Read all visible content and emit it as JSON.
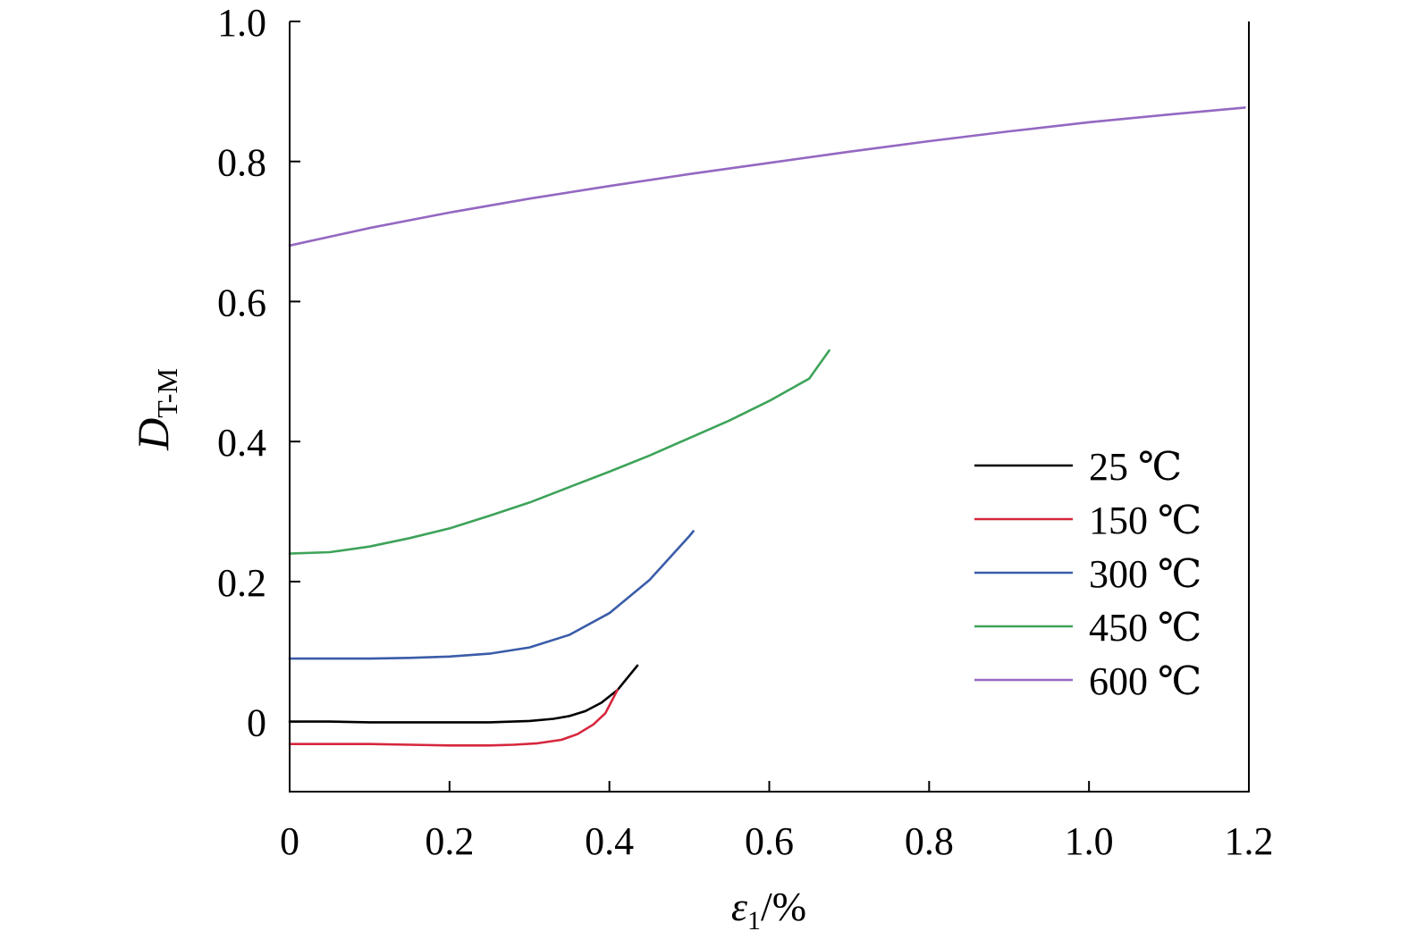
{
  "chart_data": {
    "type": "line",
    "title": "",
    "xlabel": {
      "main": "ε",
      "sub": "1",
      "suffix": "/%"
    },
    "ylabel": {
      "main": "D",
      "sub": "T-M"
    },
    "xlim": [
      0,
      1.2
    ],
    "ylim": [
      -0.1,
      1.0
    ],
    "x_ticks": [
      {
        "value": 0,
        "label": "0"
      },
      {
        "value": 0.2,
        "label": "0.2"
      },
      {
        "value": 0.4,
        "label": "0.4"
      },
      {
        "value": 0.6,
        "label": "0.6"
      },
      {
        "value": 0.8,
        "label": "0.8"
      },
      {
        "value": 1.0,
        "label": "1.0"
      },
      {
        "value": 1.2,
        "label": "1.2"
      }
    ],
    "y_ticks": [
      {
        "value": 0,
        "label": "0"
      },
      {
        "value": 0.2,
        "label": "0.2"
      },
      {
        "value": 0.4,
        "label": "0.4"
      },
      {
        "value": 0.6,
        "label": "0.6"
      },
      {
        "value": 0.8,
        "label": "0.8"
      },
      {
        "value": 1.0,
        "label": "1.0"
      }
    ],
    "grid": false,
    "legend_position": "right",
    "series": [
      {
        "name": "25 ℃",
        "color": "#000000",
        "x": [
          0,
          0.05,
          0.1,
          0.15,
          0.2,
          0.25,
          0.3,
          0.33,
          0.35,
          0.37,
          0.39,
          0.41,
          0.435
        ],
        "y": [
          0,
          0,
          -0.001,
          -0.001,
          -0.001,
          -0.001,
          0.001,
          0.004,
          0.008,
          0.015,
          0.027,
          0.045,
          0.08
        ]
      },
      {
        "name": "150 ℃",
        "color": "#d7263d",
        "x": [
          0,
          0.05,
          0.1,
          0.15,
          0.2,
          0.25,
          0.28,
          0.31,
          0.34,
          0.36,
          0.38,
          0.395,
          0.41
        ],
        "y": [
          -0.032,
          -0.032,
          -0.032,
          -0.033,
          -0.034,
          -0.034,
          -0.033,
          -0.031,
          -0.026,
          -0.018,
          -0.004,
          0.012,
          0.045
        ]
      },
      {
        "name": "300 ℃",
        "color": "#3a5ca8",
        "x": [
          0,
          0.05,
          0.1,
          0.15,
          0.2,
          0.25,
          0.3,
          0.35,
          0.4,
          0.45,
          0.5,
          0.505
        ],
        "y": [
          0.09,
          0.09,
          0.09,
          0.091,
          0.093,
          0.097,
          0.106,
          0.124,
          0.155,
          0.202,
          0.265,
          0.272
        ]
      },
      {
        "name": "450 ℃",
        "color": "#3ea35a",
        "x": [
          0,
          0.05,
          0.1,
          0.15,
          0.2,
          0.25,
          0.3,
          0.35,
          0.4,
          0.45,
          0.5,
          0.55,
          0.6,
          0.65,
          0.675
        ],
        "y": [
          0.24,
          0.242,
          0.25,
          0.262,
          0.276,
          0.294,
          0.313,
          0.335,
          0.357,
          0.38,
          0.405,
          0.43,
          0.458,
          0.49,
          0.53
        ]
      },
      {
        "name": "600 ℃",
        "color": "#9468c2",
        "x": [
          0,
          0.1,
          0.2,
          0.3,
          0.4,
          0.5,
          0.6,
          0.7,
          0.8,
          0.9,
          1.0,
          1.1,
          1.195
        ],
        "y": [
          0.68,
          0.705,
          0.727,
          0.747,
          0.765,
          0.782,
          0.798,
          0.814,
          0.829,
          0.843,
          0.856,
          0.867,
          0.877
        ]
      }
    ]
  }
}
